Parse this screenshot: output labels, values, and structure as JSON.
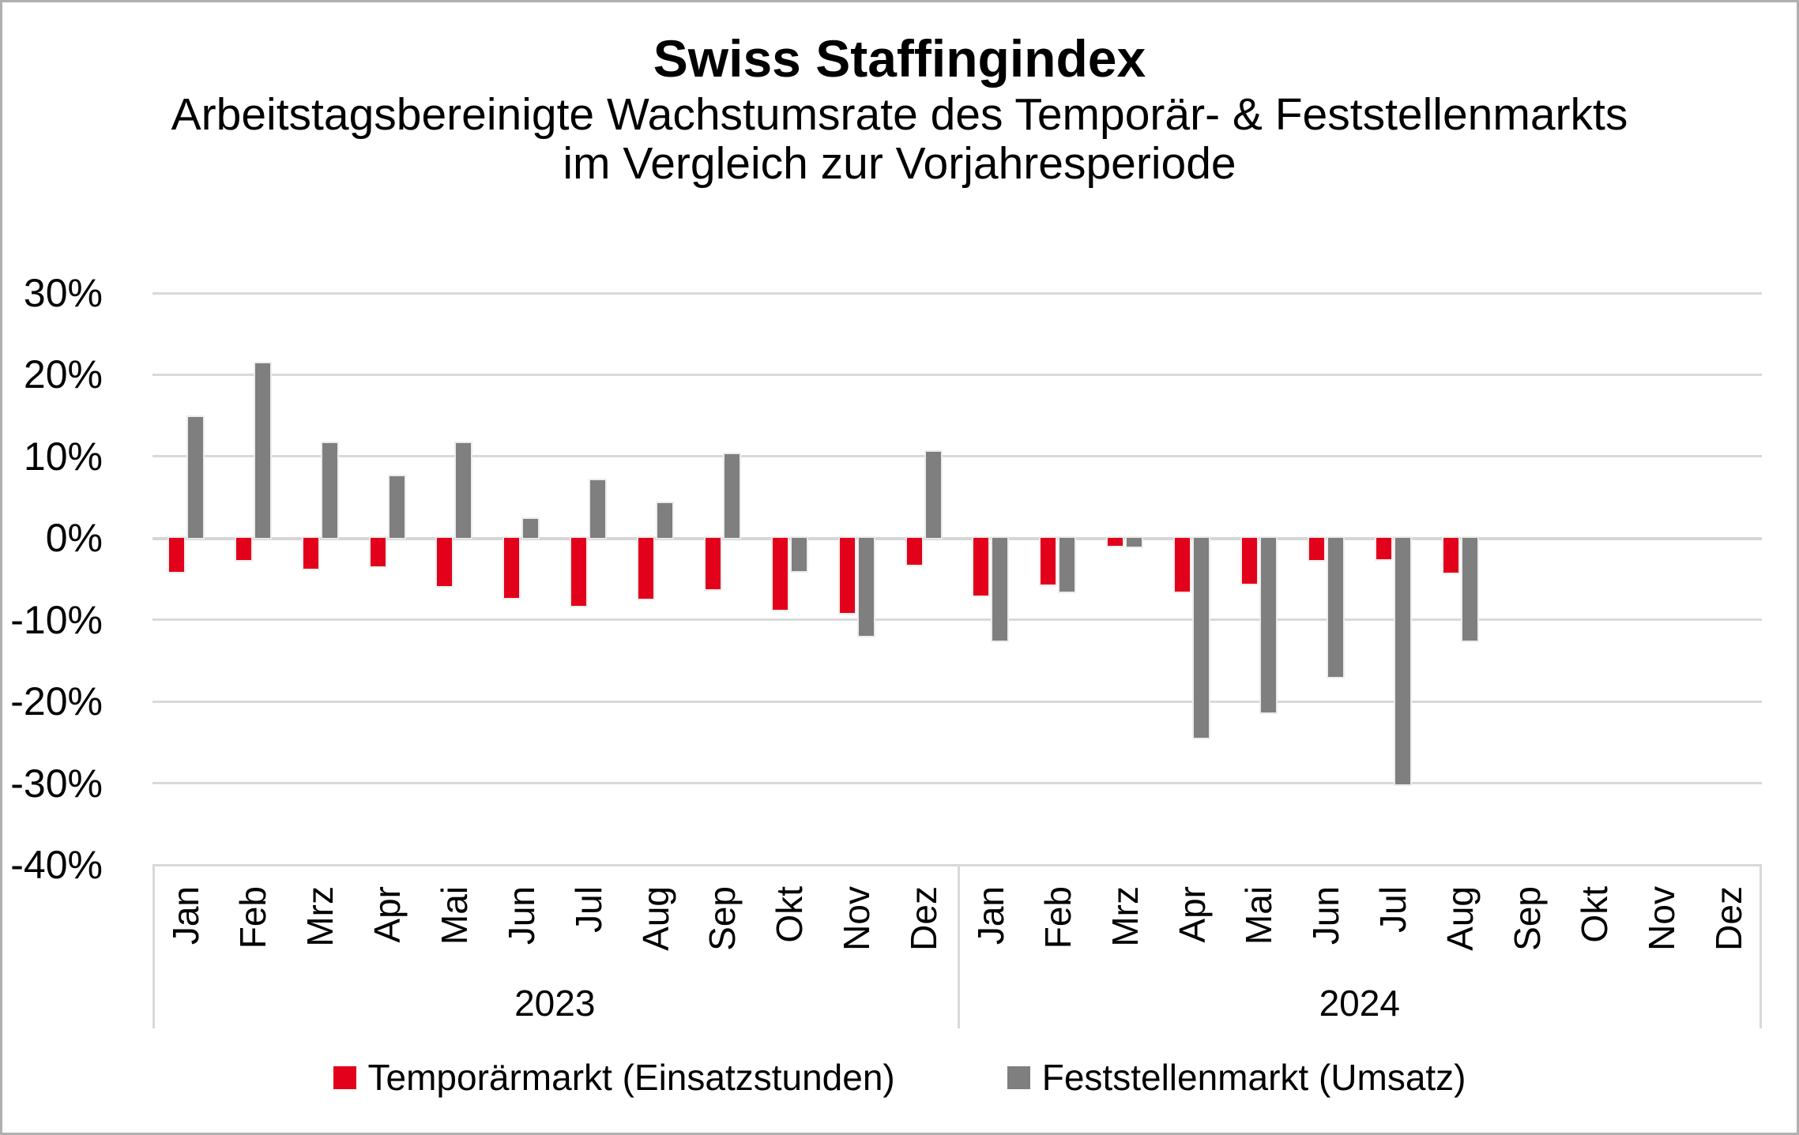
{
  "header": {
    "title": "Swiss Staffingindex",
    "subtitle_line1": "Arbeitstagsbereinigte Wachstumsrate des Temporär- & Feststellenmarkts",
    "subtitle_line2": "im Vergleich zur Vorjahresperiode"
  },
  "legend": {
    "items": [
      {
        "label": "Temporärmarkt (Einsatzstunden)",
        "color": "#E2001A"
      },
      {
        "label": "Feststellenmarkt (Umsatz)",
        "color": "#7F7F7F"
      }
    ]
  },
  "chart_data": {
    "type": "bar",
    "title": "Swiss Staffingindex",
    "subtitle": "Arbeitstagsbereinigte Wachstumsrate des Temporär- & Feststellenmarkts im Vergleich zur Vorjahresperiode",
    "unit": "percent",
    "ylim": [
      -40,
      30
    ],
    "ytick_step": 10,
    "ytick_labels": [
      "30%",
      "20%",
      "10%",
      "0%",
      "-10%",
      "-20%",
      "-30%",
      "-40%"
    ],
    "grid": true,
    "legend_position": "bottom",
    "year_groups": [
      {
        "year": "2023",
        "months": [
          "Jan",
          "Feb",
          "Mrz",
          "Apr",
          "Mai",
          "Jun",
          "Jul",
          "Aug",
          "Sep",
          "Okt",
          "Nov",
          "Dez"
        ]
      },
      {
        "year": "2024",
        "months": [
          "Jan",
          "Feb",
          "Mrz",
          "Apr",
          "Mai",
          "Jun",
          "Jul",
          "Aug",
          "Sep",
          "Okt",
          "Nov",
          "Dez"
        ]
      }
    ],
    "series": [
      {
        "name": "Temporärmarkt (Einsatzstunden)",
        "color": "#E2001A",
        "values": [
          -4.1,
          -2.7,
          -3.7,
          -3.5,
          -5.9,
          -7.3,
          -8.3,
          -7.4,
          -6.3,
          -8.8,
          -9.2,
          -3.3,
          -7.0,
          -5.7,
          -0.9,
          -6.5,
          -5.6,
          -2.7,
          -2.6,
          -4.2,
          null,
          null,
          null,
          null
        ]
      },
      {
        "name": "Feststellenmarkt (Umsatz)",
        "color": "#7F7F7F",
        "values": [
          14.8,
          21.4,
          11.6,
          7.6,
          11.6,
          2.3,
          7.1,
          4.3,
          10.3,
          -4.0,
          -12.0,
          10.6,
          -12.5,
          -6.5,
          -1.0,
          -24.4,
          -21.3,
          -17.0,
          -30.1,
          -12.5,
          null,
          null,
          null,
          null
        ]
      }
    ],
    "colors": {
      "gridline": "#D9D9D9",
      "text": "#000000",
      "background": "#FFFFFF",
      "frame_border": "#B0B0B0"
    }
  }
}
